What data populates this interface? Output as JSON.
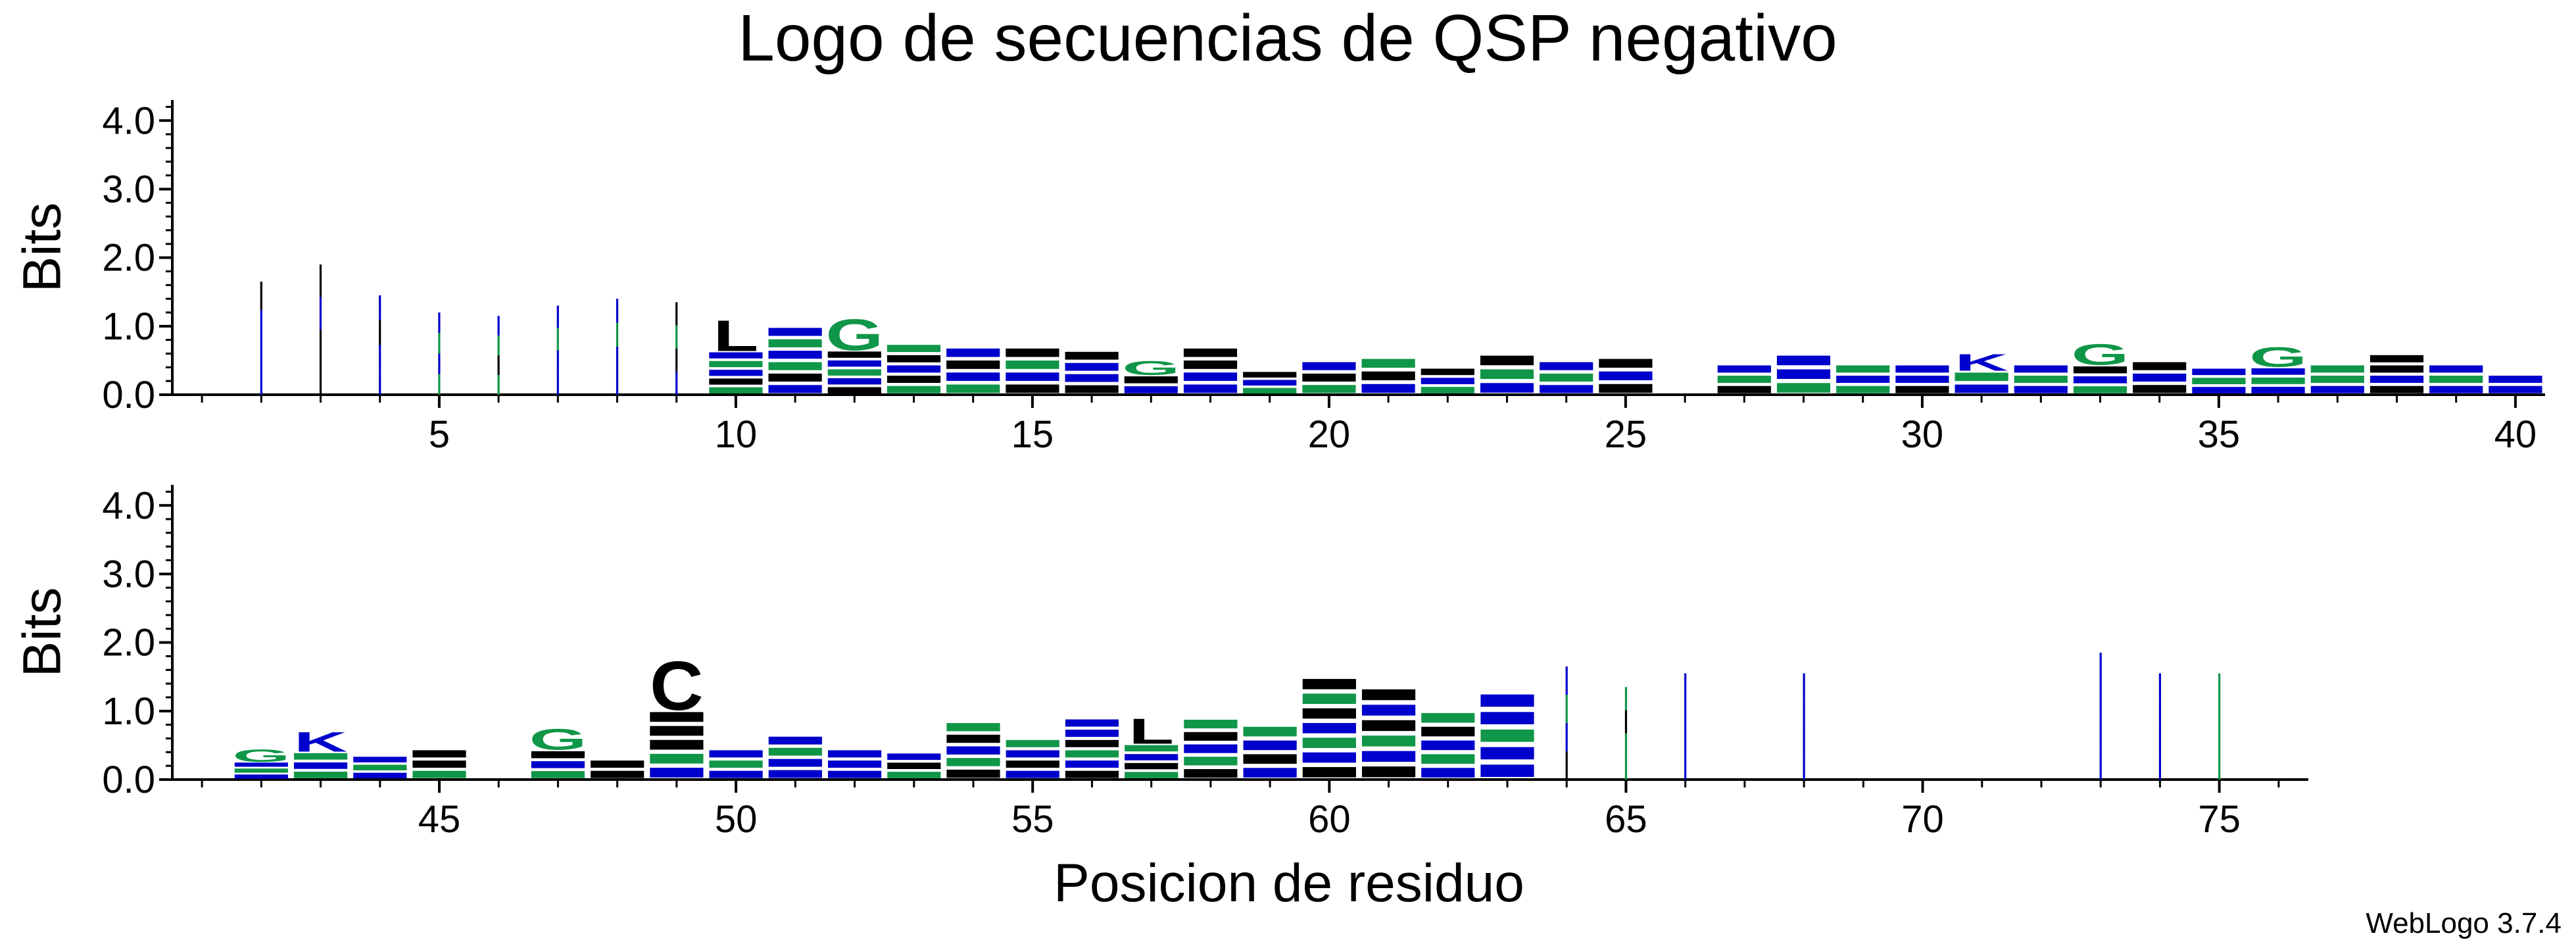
{
  "chart_data": {
    "type": "sequence-logo",
    "title": "Logo de secuencias de QSP negativo",
    "xlabel": "Posicion de residuo",
    "ylabel": "Bits",
    "credit": "WebLogo 3.7.4",
    "colors": {
      "blue": "#0000cc",
      "green": "#109648",
      "black": "#000000"
    },
    "panels": [
      {
        "name": "panel-top",
        "ylabel": "Bits",
        "ylim": [
          0,
          4.3
        ],
        "yticks": [
          "0.0",
          "1.0",
          "2.0",
          "3.0",
          "4.0"
        ],
        "xlim": [
          0.5,
          40.5
        ],
        "xticks": [
          5,
          10,
          15,
          20,
          25,
          30,
          35,
          40
        ],
        "columns": [
          {
            "pos": 2,
            "h": 1.65,
            "kind": "thin",
            "colors": [
              "blue",
              "blue",
              "blue",
              "black"
            ]
          },
          {
            "pos": 3,
            "h": 1.9,
            "kind": "thin",
            "colors": [
              "black",
              "black",
              "blue",
              "black"
            ]
          },
          {
            "pos": 4,
            "h": 1.45,
            "kind": "thin",
            "colors": [
              "blue",
              "blue",
              "black",
              "blue"
            ]
          },
          {
            "pos": 5,
            "h": 1.2,
            "kind": "thin",
            "colors": [
              "green",
              "blue",
              "green",
              "blue"
            ]
          },
          {
            "pos": 6,
            "h": 1.15,
            "kind": "thin",
            "colors": [
              "green",
              "black",
              "green",
              "blue"
            ]
          },
          {
            "pos": 7,
            "h": 1.3,
            "kind": "thin",
            "colors": [
              "blue",
              "blue",
              "green",
              "blue"
            ]
          },
          {
            "pos": 8,
            "h": 1.4,
            "kind": "thin",
            "colors": [
              "blue",
              "blue",
              "green",
              "blue"
            ]
          },
          {
            "pos": 9,
            "h": 1.35,
            "kind": "thin",
            "colors": [
              "blue",
              "black",
              "green",
              "black"
            ]
          },
          {
            "pos": 10,
            "h": 1.1,
            "kind": "stack",
            "colors": [
              "black",
              "blue",
              "green",
              "blue",
              "black",
              "green"
            ],
            "top": "L"
          },
          {
            "pos": 11,
            "h": 1.0,
            "kind": "stack",
            "colors": [
              "blue",
              "green",
              "blue",
              "green",
              "black",
              "blue"
            ]
          },
          {
            "pos": 12,
            "h": 1.12,
            "kind": "stack",
            "colors": [
              "green",
              "black",
              "blue",
              "green",
              "blue",
              "black"
            ],
            "top": "G"
          },
          {
            "pos": 13,
            "h": 0.75,
            "kind": "stack",
            "colors": [
              "green",
              "black",
              "blue",
              "black",
              "green"
            ]
          },
          {
            "pos": 14,
            "h": 0.7,
            "kind": "stack",
            "colors": [
              "blue",
              "black",
              "blue",
              "green"
            ]
          },
          {
            "pos": 15,
            "h": 0.7,
            "kind": "stack",
            "colors": [
              "black",
              "green",
              "blue",
              "black"
            ]
          },
          {
            "pos": 16,
            "h": 0.65,
            "kind": "stack",
            "colors": [
              "black",
              "blue",
              "blue",
              "black"
            ]
          },
          {
            "pos": 17,
            "h": 0.5,
            "kind": "stack",
            "colors": [
              "green",
              "black",
              "blue"
            ],
            "top": "G"
          },
          {
            "pos": 18,
            "h": 0.7,
            "kind": "stack",
            "colors": [
              "black",
              "black",
              "blue",
              "blue"
            ]
          },
          {
            "pos": 19,
            "h": 0.35,
            "kind": "stack",
            "colors": [
              "black",
              "blue",
              "green"
            ]
          },
          {
            "pos": 20,
            "h": 0.5,
            "kind": "stack",
            "colors": [
              "blue",
              "black",
              "green"
            ]
          },
          {
            "pos": 21,
            "h": 0.55,
            "kind": "stack",
            "colors": [
              "green",
              "black",
              "blue"
            ]
          },
          {
            "pos": 22,
            "h": 0.4,
            "kind": "stack",
            "colors": [
              "black",
              "blue",
              "green"
            ]
          },
          {
            "pos": 23,
            "h": 0.6,
            "kind": "stack",
            "colors": [
              "black",
              "green",
              "blue"
            ]
          },
          {
            "pos": 24,
            "h": 0.5,
            "kind": "stack",
            "colors": [
              "blue",
              "green",
              "blue"
            ]
          },
          {
            "pos": 25,
            "h": 0.55,
            "kind": "stack",
            "colors": [
              "black",
              "blue",
              "black"
            ]
          },
          {
            "pos": 27,
            "h": 0.45,
            "kind": "stack",
            "colors": [
              "blue",
              "green",
              "black"
            ]
          },
          {
            "pos": 28,
            "h": 0.6,
            "kind": "stack",
            "colors": [
              "blue",
              "blue",
              "green"
            ]
          },
          {
            "pos": 29,
            "h": 0.45,
            "kind": "stack",
            "colors": [
              "green",
              "blue",
              "green"
            ]
          },
          {
            "pos": 30,
            "h": 0.45,
            "kind": "stack",
            "colors": [
              "blue",
              "blue",
              "black"
            ]
          },
          {
            "pos": 31,
            "h": 0.6,
            "kind": "stack",
            "colors": [
              "blue",
              "green",
              "blue"
            ],
            "top": "K"
          },
          {
            "pos": 32,
            "h": 0.45,
            "kind": "stack",
            "colors": [
              "blue",
              "green",
              "blue"
            ]
          },
          {
            "pos": 33,
            "h": 0.75,
            "kind": "stack",
            "colors": [
              "green",
              "black",
              "blue",
              "green"
            ],
            "top": "G"
          },
          {
            "pos": 34,
            "h": 0.5,
            "kind": "stack",
            "colors": [
              "black",
              "blue",
              "black"
            ]
          },
          {
            "pos": 35,
            "h": 0.4,
            "kind": "stack",
            "colors": [
              "blue",
              "green",
              "blue"
            ]
          },
          {
            "pos": 36,
            "h": 0.7,
            "kind": "stack",
            "colors": [
              "green",
              "blue",
              "green",
              "blue"
            ],
            "top": "G"
          },
          {
            "pos": 37,
            "h": 0.45,
            "kind": "stack",
            "colors": [
              "green",
              "green",
              "blue"
            ]
          },
          {
            "pos": 38,
            "h": 0.6,
            "kind": "stack",
            "colors": [
              "black",
              "black",
              "blue",
              "black"
            ]
          },
          {
            "pos": 39,
            "h": 0.45,
            "kind": "stack",
            "colors": [
              "blue",
              "green",
              "blue"
            ]
          },
          {
            "pos": 40,
            "h": 0.3,
            "kind": "stack",
            "colors": [
              "blue",
              "blue"
            ]
          }
        ]
      },
      {
        "name": "panel-bottom",
        "ylabel": "Bits",
        "ylim": [
          0,
          4.3
        ],
        "yticks": [
          "0.0",
          "1.0",
          "2.0",
          "3.0",
          "4.0"
        ],
        "xlim": [
          40.5,
          76.5
        ],
        "xticks": [
          45,
          50,
          55,
          60,
          65,
          70,
          75
        ],
        "columns": [
          {
            "pos": 42,
            "h": 0.45,
            "kind": "stack",
            "colors": [
              "green",
              "blue",
              "green",
              "blue"
            ],
            "top": "G"
          },
          {
            "pos": 43,
            "h": 0.7,
            "kind": "stack",
            "colors": [
              "blue",
              "green",
              "blue",
              "green"
            ],
            "top": "K"
          },
          {
            "pos": 44,
            "h": 0.35,
            "kind": "stack",
            "colors": [
              "blue",
              "green",
              "blue"
            ]
          },
          {
            "pos": 45,
            "h": 0.45,
            "kind": "stack",
            "colors": [
              "black",
              "black",
              "green"
            ]
          },
          {
            "pos": 47,
            "h": 0.75,
            "kind": "stack",
            "colors": [
              "green",
              "black",
              "blue",
              "green"
            ],
            "top": "G"
          },
          {
            "pos": 48,
            "h": 0.3,
            "kind": "stack",
            "colors": [
              "black",
              "black"
            ]
          },
          {
            "pos": 49,
            "h": 1.75,
            "kind": "stack",
            "colors": [
              "black",
              "black",
              "black",
              "black",
              "green",
              "blue"
            ],
            "top": "C"
          },
          {
            "pos": 50,
            "h": 0.45,
            "kind": "stack",
            "colors": [
              "blue",
              "green",
              "blue"
            ]
          },
          {
            "pos": 51,
            "h": 0.65,
            "kind": "stack",
            "colors": [
              "blue",
              "green",
              "blue",
              "blue"
            ]
          },
          {
            "pos": 52,
            "h": 0.45,
            "kind": "stack",
            "colors": [
              "blue",
              "blue",
              "blue"
            ]
          },
          {
            "pos": 53,
            "h": 0.4,
            "kind": "stack",
            "colors": [
              "blue",
              "black",
              "green"
            ]
          },
          {
            "pos": 54,
            "h": 0.85,
            "kind": "stack",
            "colors": [
              "green",
              "black",
              "blue",
              "green",
              "black"
            ]
          },
          {
            "pos": 55,
            "h": 0.6,
            "kind": "stack",
            "colors": [
              "green",
              "blue",
              "black",
              "blue"
            ]
          },
          {
            "pos": 56,
            "h": 0.9,
            "kind": "stack",
            "colors": [
              "blue",
              "blue",
              "black",
              "green",
              "blue",
              "black"
            ]
          },
          {
            "pos": 57,
            "h": 0.9,
            "kind": "stack",
            "colors": [
              "black",
              "green",
              "blue",
              "black",
              "green"
            ],
            "top": "L"
          },
          {
            "pos": 58,
            "h": 0.9,
            "kind": "stack",
            "colors": [
              "green",
              "black",
              "blue",
              "green",
              "black"
            ]
          },
          {
            "pos": 59,
            "h": 0.8,
            "kind": "stack",
            "colors": [
              "green",
              "blue",
              "black",
              "blue"
            ]
          },
          {
            "pos": 60,
            "h": 1.5,
            "kind": "stack",
            "colors": [
              "black",
              "green",
              "black",
              "blue",
              "green",
              "blue",
              "black"
            ]
          },
          {
            "pos": 61,
            "h": 1.35,
            "kind": "stack",
            "colors": [
              "black",
              "blue",
              "black",
              "green",
              "blue",
              "black"
            ]
          },
          {
            "pos": 62,
            "h": 1.0,
            "kind": "stack",
            "colors": [
              "green",
              "black",
              "blue",
              "green",
              "blue"
            ]
          },
          {
            "pos": 63,
            "h": 1.28,
            "kind": "stack",
            "colors": [
              "blue",
              "blue",
              "green",
              "blue",
              "blue"
            ]
          },
          {
            "pos": 64,
            "h": 1.65,
            "kind": "thin",
            "colors": [
              "black",
              "blue",
              "green",
              "blue"
            ]
          },
          {
            "pos": 65,
            "h": 1.35,
            "kind": "thin",
            "colors": [
              "green",
              "green",
              "black",
              "green"
            ]
          },
          {
            "pos": 66,
            "h": 1.55,
            "kind": "thin",
            "colors": [
              "blue",
              "blue",
              "blue",
              "blue"
            ]
          },
          {
            "pos": 68,
            "h": 1.55,
            "kind": "thin",
            "colors": [
              "blue",
              "blue",
              "blue",
              "blue"
            ]
          },
          {
            "pos": 73,
            "h": 1.85,
            "kind": "thin",
            "colors": [
              "blue",
              "blue",
              "blue",
              "blue"
            ]
          },
          {
            "pos": 74,
            "h": 1.55,
            "kind": "thin",
            "colors": [
              "blue",
              "blue",
              "blue",
              "blue"
            ]
          },
          {
            "pos": 75,
            "h": 1.55,
            "kind": "thin",
            "colors": [
              "green",
              "green",
              "green",
              "green"
            ]
          }
        ]
      }
    ]
  }
}
